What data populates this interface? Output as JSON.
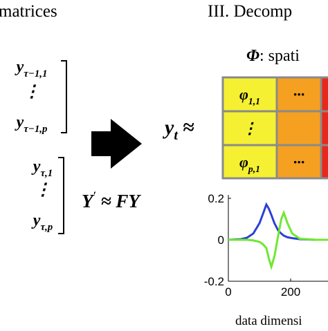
{
  "header": {
    "left": "matrices",
    "right": "III. Decomp"
  },
  "matrices": [
    {
      "rows": [
        {
          "base": "y",
          "sub": "τ−1,1"
        },
        {
          "base": "⋮"
        },
        {
          "base": "y",
          "sub": "τ−1,p"
        }
      ]
    },
    {
      "rows": [
        {
          "base": "y",
          "sub": "τ,1"
        },
        {
          "base": "⋮"
        },
        {
          "base": "y",
          "sub": "τ,p"
        }
      ]
    }
  ],
  "equation": {
    "lhs": "Y",
    "prime": "′",
    "rest": " ≈ FY"
  },
  "decomposition": {
    "lhs": "y",
    "lhs_sub": "t",
    "approx": " ≈",
    "factor": "Φ",
    "factor_desc": ": spati",
    "cells": [
      [
        {
          "base": "φ",
          "sub": "1,1"
        },
        {
          "base": "···"
        }
      ],
      [
        {
          "base": "⋮"
        }
      ],
      [
        {
          "base": "φ",
          "sub": "p,1"
        },
        {
          "base": "···"
        }
      ]
    ]
  },
  "chart_data": {
    "type": "line",
    "xlabel": "data dimensi",
    "x": [
      0,
      40,
      60,
      80,
      100,
      110,
      122,
      130,
      138,
      148,
      160,
      170,
      178,
      190,
      205,
      230,
      280,
      320
    ],
    "series": [
      {
        "color": "#2b3fd6",
        "values": [
          0,
          0.003,
          0.01,
          0.03,
          0.08,
          0.12,
          0.17,
          0.15,
          0.12,
          0.08,
          0.045,
          0.03,
          0.02,
          0.012,
          0.008,
          0.003,
          0,
          0
        ]
      },
      {
        "color": "#6ee830",
        "values": [
          0,
          0,
          0,
          -0.003,
          -0.01,
          -0.02,
          -0.04,
          -0.09,
          -0.13,
          -0.08,
          0.02,
          0.1,
          0.13,
          0.08,
          0.03,
          0.005,
          0,
          0
        ]
      }
    ],
    "xlim": [
      0,
      320
    ],
    "ylim": [
      -0.2,
      0.2
    ],
    "xticks": [
      0,
      200
    ],
    "yticks": [
      0.2,
      0,
      -0.2
    ]
  }
}
